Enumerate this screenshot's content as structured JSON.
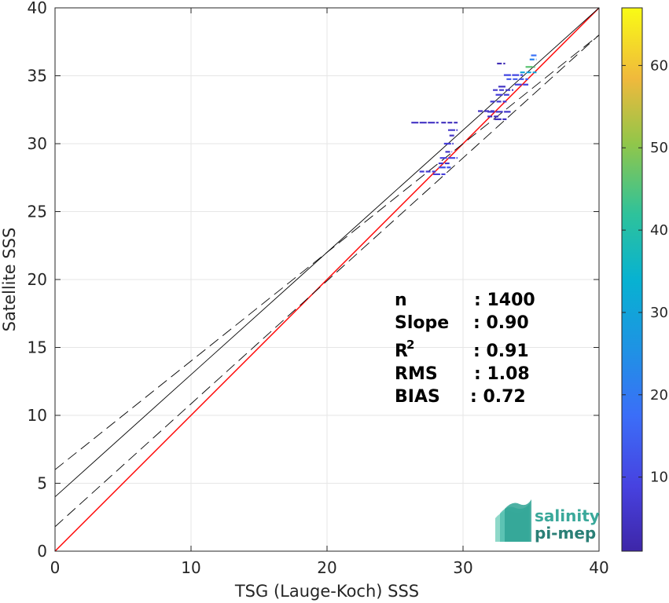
{
  "chart_data": {
    "type": "scatter",
    "title": "",
    "xlabel": "TSG (Lauge-Koch) SSS",
    "ylabel": "Satellite SSS",
    "xlim": [
      0,
      40
    ],
    "ylim": [
      0,
      40
    ],
    "xticks": [
      0,
      10,
      20,
      30,
      40
    ],
    "yticks": [
      0,
      5,
      10,
      15,
      20,
      25,
      30,
      35,
      40
    ],
    "xtick_labels": [
      "0",
      "10",
      "20",
      "30",
      "40"
    ],
    "ytick_labels": [
      "0",
      "5",
      "10",
      "15",
      "20",
      "25",
      "30",
      "35",
      "40"
    ],
    "grid": true,
    "lines": [
      {
        "kind": "identity",
        "slope": 1.0,
        "intercept": 0,
        "color": "#ff0000",
        "style": "solid"
      },
      {
        "kind": "regression",
        "slope": 0.9,
        "intercept": 4.0,
        "color": "#000000",
        "style": "solid"
      },
      {
        "kind": "regression-upper",
        "slope": 0.8,
        "intercept": 6.0,
        "color": "#000000",
        "style": "dashed"
      },
      {
        "kind": "regression-lower",
        "slope": 0.905,
        "intercept": 1.8,
        "color": "#000000",
        "style": "dashed"
      }
    ],
    "density_segments": [
      {
        "x0": 26.2,
        "x1": 28.2,
        "y": 31.55,
        "c": 5
      },
      {
        "x0": 28.4,
        "x1": 29.6,
        "y": 31.55,
        "c": 4
      },
      {
        "x0": 28.9,
        "x1": 29.6,
        "y": 31.0,
        "c": 6
      },
      {
        "x0": 29.0,
        "x1": 29.4,
        "y": 30.6,
        "c": 5
      },
      {
        "x0": 28.6,
        "x1": 29.3,
        "y": 30.0,
        "c": 8
      },
      {
        "x0": 28.7,
        "x1": 29.2,
        "y": 29.4,
        "c": 6
      },
      {
        "x0": 28.3,
        "x1": 29.6,
        "y": 28.95,
        "c": 9
      },
      {
        "x0": 28.2,
        "x1": 29.0,
        "y": 28.55,
        "c": 6
      },
      {
        "x0": 28.2,
        "x1": 29.1,
        "y": 28.25,
        "c": 12
      },
      {
        "x0": 26.8,
        "x1": 28.0,
        "y": 27.95,
        "c": 7
      },
      {
        "x0": 27.8,
        "x1": 28.7,
        "y": 27.75,
        "c": 8
      },
      {
        "x0": 31.1,
        "x1": 32.3,
        "y": 32.4,
        "c": 5
      },
      {
        "x0": 31.8,
        "x1": 33.5,
        "y": 32.35,
        "c": 6
      },
      {
        "x0": 31.8,
        "x1": 32.6,
        "y": 32.0,
        "c": 4
      },
      {
        "x0": 32.3,
        "x1": 33.2,
        "y": 31.8,
        "c": 4
      },
      {
        "x0": 32.0,
        "x1": 33.2,
        "y": 33.1,
        "c": 7
      },
      {
        "x0": 32.4,
        "x1": 33.4,
        "y": 33.6,
        "c": 8
      },
      {
        "x0": 32.2,
        "x1": 33.7,
        "y": 33.95,
        "c": 6
      },
      {
        "x0": 32.6,
        "x1": 33.2,
        "y": 34.2,
        "c": 5
      },
      {
        "x0": 32.5,
        "x1": 33.1,
        "y": 35.9,
        "c": 3
      },
      {
        "x0": 33.0,
        "x1": 34.4,
        "y": 35.05,
        "c": 10
      },
      {
        "x0": 33.2,
        "x1": 34.8,
        "y": 34.75,
        "c": 13
      },
      {
        "x0": 33.8,
        "x1": 34.8,
        "y": 34.35,
        "c": 9
      },
      {
        "x0": 34.2,
        "x1": 35.4,
        "y": 35.25,
        "c": 30
      },
      {
        "x0": 34.6,
        "x1": 35.3,
        "y": 35.65,
        "c": 46
      },
      {
        "x0": 34.9,
        "x1": 35.4,
        "y": 36.2,
        "c": 22
      },
      {
        "x0": 35.0,
        "x1": 35.4,
        "y": 36.5,
        "c": 18
      }
    ],
    "colorbar": {
      "min": 1,
      "max": 67,
      "ticks": [
        10,
        20,
        30,
        40,
        50,
        60
      ],
      "tick_labels": [
        "10",
        "20",
        "30",
        "40",
        "50",
        "60"
      ],
      "colormap": "parula"
    },
    "stats": [
      {
        "label": "n",
        "value": ": 1400"
      },
      {
        "label": "Slope",
        "value": ": 0.90"
      },
      {
        "label": "R",
        "label_sup": "2",
        "value": ": 0.91"
      },
      {
        "label": "RMS",
        "value": ": 1.08"
      },
      {
        "label": "BIAS",
        "value": ": 0.72"
      }
    ]
  },
  "logo": {
    "line1": "salinity",
    "line2": "pi-mep",
    "colors": [
      "#2fa394",
      "#56c1b0",
      "#8fd8c9"
    ]
  }
}
